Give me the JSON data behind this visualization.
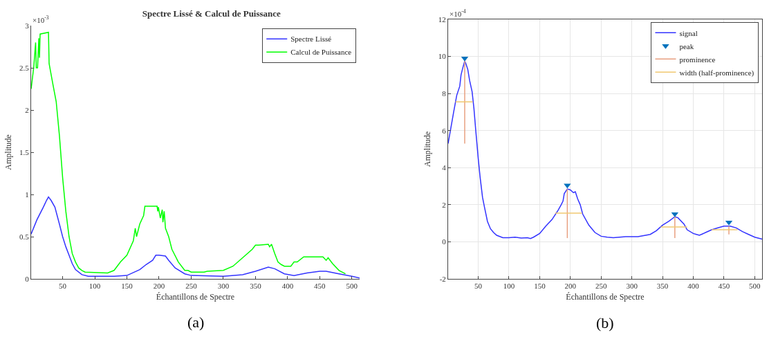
{
  "chart_data": [
    {
      "type": "line",
      "title": "Spectre Lissé & Calcul de Puissance",
      "xlabel": "Échantillons de Spectre",
      "ylabel": "Amplitude",
      "xlim": [
        1,
        512
      ],
      "xticks": [
        50,
        100,
        150,
        200,
        250,
        300,
        350,
        400,
        450,
        500
      ],
      "ylim": [
        0,
        3
      ],
      "yticks": [
        0,
        0.5,
        1,
        1.5,
        2,
        2.5,
        3
      ],
      "grid": false,
      "legend": "top right",
      "annotations": [
        "×10$^{-3}$",
        "(a)"
      ],
      "series": [
        {
          "name": "Spectre Lissé",
          "color": "#3333ff",
          "x": [
            1,
            10,
            20,
            25,
            28,
            32,
            38,
            45,
            50,
            55,
            60,
            65,
            70,
            80,
            90,
            130,
            150,
            170,
            180,
            190,
            195,
            200,
            210,
            215,
            225,
            240,
            250,
            300,
            330,
            350,
            370,
            380,
            395,
            410,
            430,
            450,
            460,
            480,
            500,
            512
          ],
          "values": [
            0.53,
            0.7,
            0.85,
            0.93,
            0.97,
            0.93,
            0.85,
            0.65,
            0.5,
            0.38,
            0.28,
            0.18,
            0.11,
            0.05,
            0.03,
            0.03,
            0.04,
            0.11,
            0.17,
            0.22,
            0.28,
            0.28,
            0.27,
            0.22,
            0.13,
            0.06,
            0.04,
            0.03,
            0.05,
            0.09,
            0.14,
            0.12,
            0.06,
            0.04,
            0.07,
            0.09,
            0.09,
            0.06,
            0.03,
            0.01
          ]
        },
        {
          "name": "Calcul de Puissance",
          "color": "#00ff00",
          "x": [
            1,
            5,
            8,
            9,
            11,
            13,
            14,
            15,
            28,
            29,
            35,
            40,
            45,
            50,
            55,
            60,
            65,
            70,
            75,
            80,
            85,
            120,
            130,
            140,
            150,
            160,
            163,
            165,
            170,
            176,
            178,
            197,
            198,
            199,
            202,
            205,
            206,
            208,
            210,
            215,
            220,
            230,
            240,
            245,
            250,
            270,
            275,
            300,
            315,
            330,
            345,
            350,
            355,
            370,
            372,
            375,
            380,
            385,
            390,
            395,
            405,
            410,
            415,
            425,
            455,
            460,
            463,
            470,
            480,
            490
          ],
          "values": [
            2.25,
            2.5,
            2.8,
            2.5,
            2.5,
            2.85,
            2.62,
            2.9,
            2.92,
            2.55,
            2.3,
            2.1,
            1.7,
            1.2,
            0.8,
            0.5,
            0.3,
            0.2,
            0.13,
            0.1,
            0.08,
            0.07,
            0.1,
            0.2,
            0.28,
            0.45,
            0.6,
            0.5,
            0.65,
            0.75,
            0.86,
            0.86,
            0.8,
            0.85,
            0.72,
            0.82,
            0.67,
            0.8,
            0.6,
            0.5,
            0.35,
            0.2,
            0.1,
            0.1,
            0.08,
            0.08,
            0.09,
            0.1,
            0.15,
            0.25,
            0.35,
            0.4,
            0.4,
            0.41,
            0.38,
            0.41,
            0.3,
            0.2,
            0.17,
            0.15,
            0.15,
            0.2,
            0.2,
            0.26,
            0.26,
            0.22,
            0.25,
            0.18,
            0.1,
            0.06
          ]
        }
      ]
    },
    {
      "type": "line",
      "xlabel": "Échantillons de Spectre",
      "ylabel": "Amplitude",
      "xlim": [
        1,
        512
      ],
      "xticks": [
        50,
        100,
        150,
        200,
        250,
        300,
        350,
        400,
        450,
        500
      ],
      "ylim": [
        -2,
        12
      ],
      "yticks": [
        -2,
        0,
        2,
        4,
        6,
        8,
        10,
        12
      ],
      "grid": true,
      "legend": "top right",
      "annotations": [
        "×10$^{-4}$",
        "(b)"
      ],
      "series": [
        {
          "name": "signal",
          "color": "#3333ff",
          "x": [
            1,
            10,
            15,
            20,
            22,
            25,
            28,
            30,
            33,
            36,
            40,
            43,
            46,
            50,
            53,
            57,
            60,
            65,
            70,
            75,
            80,
            90,
            100,
            110,
            120,
            130,
            135,
            140,
            150,
            160,
            170,
            175,
            180,
            185,
            188,
            190,
            195,
            200,
            205,
            208,
            212,
            216,
            220,
            230,
            240,
            250,
            260,
            270,
            290,
            310,
            330,
            340,
            350,
            360,
            370,
            375,
            385,
            390,
            400,
            405,
            410,
            420,
            430,
            440,
            450,
            460,
            470,
            480,
            490,
            500,
            512
          ],
          "values": [
            5.3,
            7.0,
            7.9,
            8.4,
            9.0,
            9.4,
            9.75,
            9.6,
            9.3,
            8.7,
            8.1,
            7.2,
            6.0,
            4.5,
            3.5,
            2.4,
            1.9,
            1.1,
            0.7,
            0.5,
            0.35,
            0.22,
            0.22,
            0.25,
            0.2,
            0.22,
            0.18,
            0.25,
            0.45,
            0.85,
            1.2,
            1.45,
            1.7,
            2.0,
            2.2,
            2.6,
            2.85,
            2.8,
            2.65,
            2.7,
            2.3,
            2.0,
            1.5,
            0.9,
            0.5,
            0.3,
            0.25,
            0.22,
            0.28,
            0.28,
            0.4,
            0.6,
            0.9,
            1.1,
            1.35,
            1.3,
            0.95,
            0.65,
            0.45,
            0.4,
            0.35,
            0.5,
            0.65,
            0.75,
            0.85,
            0.85,
            0.75,
            0.55,
            0.4,
            0.25,
            0.15
          ]
        },
        {
          "name": "peak",
          "type": "scatter",
          "marker": "triangle",
          "color": "#0072bd",
          "x": [
            28,
            195,
            370,
            458
          ],
          "values": [
            9.9,
            3.05,
            1.5,
            1.05
          ]
        },
        {
          "name": "prominence",
          "color": "#e8a080",
          "x": [
            28,
            28,
            null,
            195,
            195,
            null,
            370,
            370,
            null,
            458,
            458
          ],
          "values": [
            5.3,
            9.75,
            null,
            0.2,
            2.85,
            null,
            0.2,
            1.35,
            null,
            0.4,
            0.85
          ]
        },
        {
          "name": "width (half-prominence)",
          "color": "#f0c870",
          "x": [
            13,
            41,
            null,
            175,
            219,
            null,
            347,
            390,
            null,
            430,
            472
          ],
          "values": [
            7.55,
            7.55,
            null,
            1.55,
            1.55,
            null,
            0.8,
            0.8,
            null,
            0.65,
            0.65
          ]
        }
      ]
    }
  ]
}
